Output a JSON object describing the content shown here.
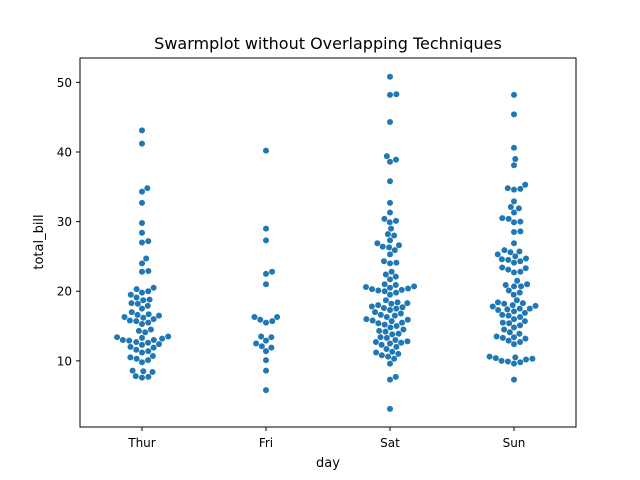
{
  "chart_data": {
    "type": "scatter",
    "subtype": "swarm",
    "title": "Swarmplot without Overlapping Techniques",
    "xlabel": "day",
    "ylabel": "total_bill",
    "ylim": [
      0.5,
      53.5
    ],
    "yticks": [
      10,
      20,
      30,
      40,
      50
    ],
    "categories": [
      "Thur",
      "Fri",
      "Sat",
      "Sun"
    ],
    "point_color": "#1f77b4",
    "series": [
      {
        "name": "Thur",
        "values": [
          43.1,
          41.2,
          34.8,
          34.3,
          32.7,
          29.8,
          28.4,
          27.2,
          27.0,
          24.7,
          24.0,
          22.9,
          22.8,
          20.5,
          20.3,
          20.0,
          19.8,
          19.5,
          19.1,
          18.8,
          18.7,
          18.3,
          18.2,
          17.9,
          17.5,
          17.0,
          16.7,
          16.6,
          16.5,
          16.3,
          16.2,
          16.0,
          15.8,
          15.7,
          15.5,
          15.3,
          14.5,
          14.3,
          14.1,
          13.5,
          13.4,
          13.3,
          13.2,
          13.0,
          13.0,
          12.9,
          12.7,
          12.6,
          12.4,
          12.3,
          12.0,
          11.9,
          11.6,
          11.4,
          11.2,
          10.7,
          10.5,
          10.3,
          10.1,
          9.8,
          8.6,
          8.5,
          8.4,
          7.8,
          7.7,
          7.6
        ]
      },
      {
        "name": "Fri",
        "values": [
          40.2,
          29.0,
          27.3,
          22.8,
          22.5,
          21.0,
          16.3,
          16.3,
          15.9,
          15.7,
          15.5,
          13.5,
          13.4,
          12.9,
          12.5,
          12.1,
          11.9,
          11.4,
          10.1,
          8.6,
          5.8
        ]
      },
      {
        "name": "Sat",
        "values": [
          50.8,
          48.3,
          48.2,
          44.3,
          39.4,
          38.9,
          38.6,
          35.8,
          32.7,
          31.3,
          30.4,
          30.1,
          29.9,
          29.0,
          28.2,
          28.0,
          27.3,
          26.9,
          26.6,
          26.4,
          26.3,
          25.9,
          25.3,
          24.3,
          24.1,
          24.0,
          22.8,
          22.4,
          22.1,
          21.7,
          21.0,
          20.9,
          20.7,
          20.6,
          20.5,
          20.4,
          20.3,
          20.2,
          20.1,
          20.0,
          19.8,
          19.5,
          18.7,
          18.4,
          18.3,
          18.2,
          18.0,
          17.8,
          17.7,
          17.6,
          17.5,
          17.3,
          17.0,
          16.8,
          16.6,
          16.5,
          16.3,
          16.0,
          15.9,
          15.8,
          15.7,
          15.5,
          15.4,
          15.2,
          15.0,
          14.8,
          14.5,
          14.3,
          14.2,
          13.9,
          13.8,
          13.4,
          13.3,
          13.0,
          12.8,
          12.7,
          12.6,
          12.5,
          12.3,
          12.0,
          11.7,
          11.3,
          11.2,
          11.0,
          10.8,
          10.6,
          10.3,
          9.6,
          7.7,
          7.3,
          3.1
        ]
      },
      {
        "name": "Sun",
        "values": [
          48.2,
          45.4,
          40.6,
          39.0,
          38.1,
          35.3,
          34.8,
          34.7,
          34.6,
          32.9,
          32.1,
          31.9,
          31.3,
          30.5,
          30.4,
          30.0,
          29.9,
          28.6,
          28.5,
          26.9,
          25.9,
          25.7,
          25.6,
          25.3,
          25.0,
          24.7,
          24.6,
          24.5,
          24.3,
          24.1,
          23.4,
          23.3,
          23.1,
          22.8,
          22.7,
          21.5,
          21.0,
          20.9,
          20.7,
          20.7,
          20.1,
          19.8,
          19.5,
          18.7,
          18.4,
          18.3,
          18.2,
          18.0,
          17.9,
          17.8,
          17.5,
          17.5,
          17.4,
          17.3,
          17.1,
          16.9,
          16.6,
          16.5,
          16.3,
          16.0,
          15.7,
          15.5,
          15.4,
          15.1,
          14.8,
          14.5,
          14.1,
          13.9,
          13.5,
          13.4,
          13.3,
          13.2,
          12.9,
          12.7,
          12.4,
          10.6,
          10.5,
          10.4,
          10.3,
          10.2,
          10.0,
          9.9,
          9.8,
          9.6,
          7.3
        ]
      }
    ]
  }
}
